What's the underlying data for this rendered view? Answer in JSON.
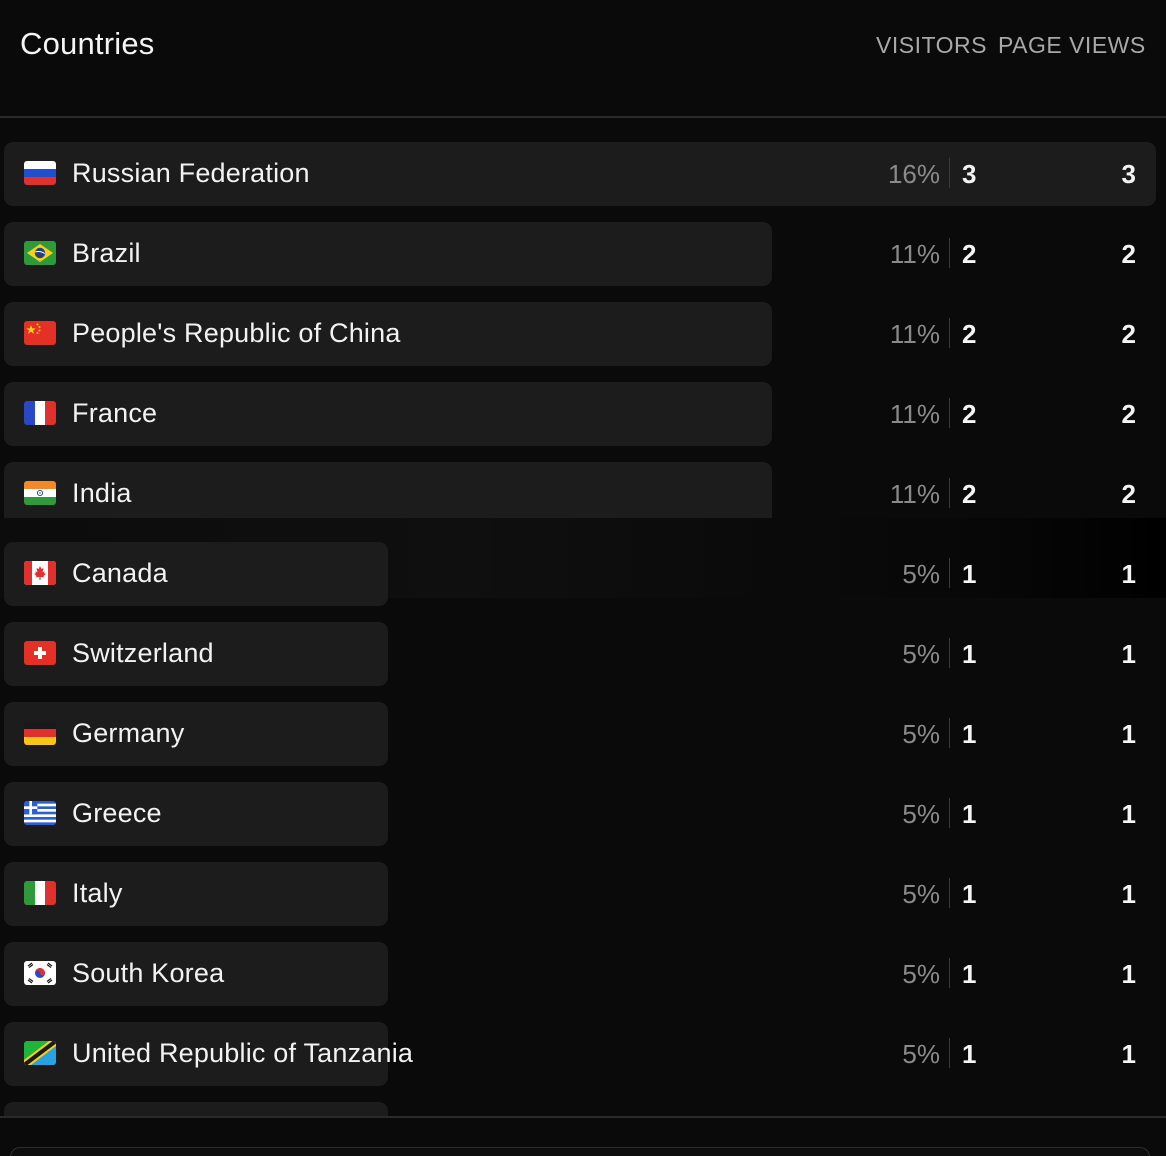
{
  "header": {
    "title": "Countries",
    "col_visitors": "VISITORS",
    "col_pageviews": "PAGE VIEWS"
  },
  "colors": {
    "background": "#0a0a0a",
    "bar": "#1c1c1c",
    "text": "#f2f2f2",
    "muted": "#8a8a8a"
  },
  "rows": [
    {
      "country": "Russian Federation",
      "flag": "russia-flag-icon",
      "percent": "16%",
      "share": 1.0,
      "visitors": "3",
      "pageviews": "3"
    },
    {
      "country": "Brazil",
      "flag": "brazil-flag-icon",
      "percent": "11%",
      "share": 0.667,
      "visitors": "2",
      "pageviews": "2"
    },
    {
      "country": "People's Republic of China",
      "flag": "china-flag-icon",
      "percent": "11%",
      "share": 0.667,
      "visitors": "2",
      "pageviews": "2"
    },
    {
      "country": "France",
      "flag": "france-flag-icon",
      "percent": "11%",
      "share": 0.667,
      "visitors": "2",
      "pageviews": "2"
    },
    {
      "country": "India",
      "flag": "india-flag-icon",
      "percent": "11%",
      "share": 0.667,
      "visitors": "2",
      "pageviews": "2"
    },
    {
      "country": "Canada",
      "flag": "canada-flag-icon",
      "percent": "5%",
      "share": 0.333,
      "visitors": "1",
      "pageviews": "1",
      "hover": true
    },
    {
      "country": "Switzerland",
      "flag": "switzerland-flag-icon",
      "percent": "5%",
      "share": 0.333,
      "visitors": "1",
      "pageviews": "1"
    },
    {
      "country": "Germany",
      "flag": "germany-flag-icon",
      "percent": "5%",
      "share": 0.333,
      "visitors": "1",
      "pageviews": "1"
    },
    {
      "country": "Greece",
      "flag": "greece-flag-icon",
      "percent": "5%",
      "share": 0.333,
      "visitors": "1",
      "pageviews": "1"
    },
    {
      "country": "Italy",
      "flag": "italy-flag-icon",
      "percent": "5%",
      "share": 0.333,
      "visitors": "1",
      "pageviews": "1"
    },
    {
      "country": "South Korea",
      "flag": "south-korea-flag-icon",
      "percent": "5%",
      "share": 0.333,
      "visitors": "1",
      "pageviews": "1"
    },
    {
      "country": "United Republic of Tanzania",
      "flag": "tanzania-flag-icon",
      "percent": "5%",
      "share": 0.333,
      "visitors": "1",
      "pageviews": "1"
    },
    {
      "country": "",
      "flag": "",
      "percent": "",
      "share": 0.333,
      "visitors": "",
      "pageviews": ""
    }
  ]
}
